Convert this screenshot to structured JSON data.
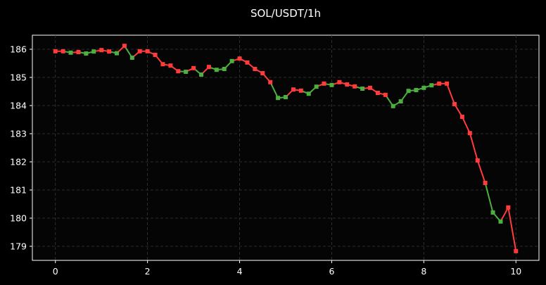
{
  "chart_data": {
    "type": "line",
    "title": "SOL/USDT/1h",
    "xlabel": "",
    "ylabel": "",
    "xlim": [
      -0.5,
      10.5
    ],
    "ylim": [
      178.5,
      186.5
    ],
    "xticks": [
      0,
      2,
      4,
      6,
      8,
      10
    ],
    "yticks": [
      179,
      180,
      181,
      182,
      183,
      184,
      185,
      186
    ],
    "grid": true,
    "up_color": "#4caf3f",
    "down_color": "#ff3b3b",
    "x": [
      0.0,
      0.167,
      0.333,
      0.5,
      0.667,
      0.833,
      1.0,
      1.167,
      1.333,
      1.5,
      1.667,
      1.833,
      2.0,
      2.167,
      2.333,
      2.5,
      2.667,
      2.833,
      3.0,
      3.167,
      3.333,
      3.5,
      3.667,
      3.833,
      4.0,
      4.167,
      4.333,
      4.5,
      4.667,
      4.833,
      5.0,
      5.167,
      5.333,
      5.5,
      5.667,
      5.833,
      6.0,
      6.167,
      6.333,
      6.5,
      6.667,
      6.833,
      7.0,
      7.167,
      7.333,
      7.5,
      7.667,
      7.833,
      8.0,
      8.167,
      8.333,
      8.5,
      8.667,
      8.833,
      9.0,
      9.167,
      9.333,
      9.5,
      9.667,
      9.833,
      10.0
    ],
    "y": [
      185.93,
      185.93,
      185.88,
      185.9,
      185.85,
      185.92,
      185.97,
      185.92,
      185.86,
      186.12,
      185.7,
      185.93,
      185.93,
      185.8,
      185.47,
      185.42,
      185.22,
      185.2,
      185.33,
      185.1,
      185.37,
      185.27,
      185.3,
      185.58,
      185.67,
      185.53,
      185.3,
      185.15,
      184.83,
      184.27,
      184.3,
      184.57,
      184.53,
      184.42,
      184.67,
      184.78,
      184.73,
      184.83,
      184.75,
      184.68,
      184.6,
      184.63,
      184.45,
      184.38,
      183.98,
      184.15,
      184.52,
      184.55,
      184.63,
      184.72,
      184.78,
      184.78,
      184.05,
      183.6,
      183.02,
      182.05,
      181.25,
      180.2,
      179.88,
      180.38,
      178.83
    ],
    "directions": [
      "down",
      "down",
      "up",
      "down",
      "up",
      "up",
      "down",
      "down",
      "up",
      "down",
      "up",
      "down",
      "down",
      "down",
      "down",
      "down",
      "down",
      "up",
      "down",
      "up",
      "down",
      "up",
      "up",
      "up",
      "down",
      "down",
      "down",
      "down",
      "down",
      "up",
      "up",
      "down",
      "down",
      "up",
      "up",
      "down",
      "up",
      "down",
      "down",
      "down",
      "up",
      "down",
      "down",
      "down",
      "up",
      "up",
      "up",
      "up",
      "up",
      "up",
      "down",
      "down",
      "down",
      "down",
      "down",
      "down",
      "down",
      "up",
      "up",
      "down",
      "down"
    ]
  }
}
